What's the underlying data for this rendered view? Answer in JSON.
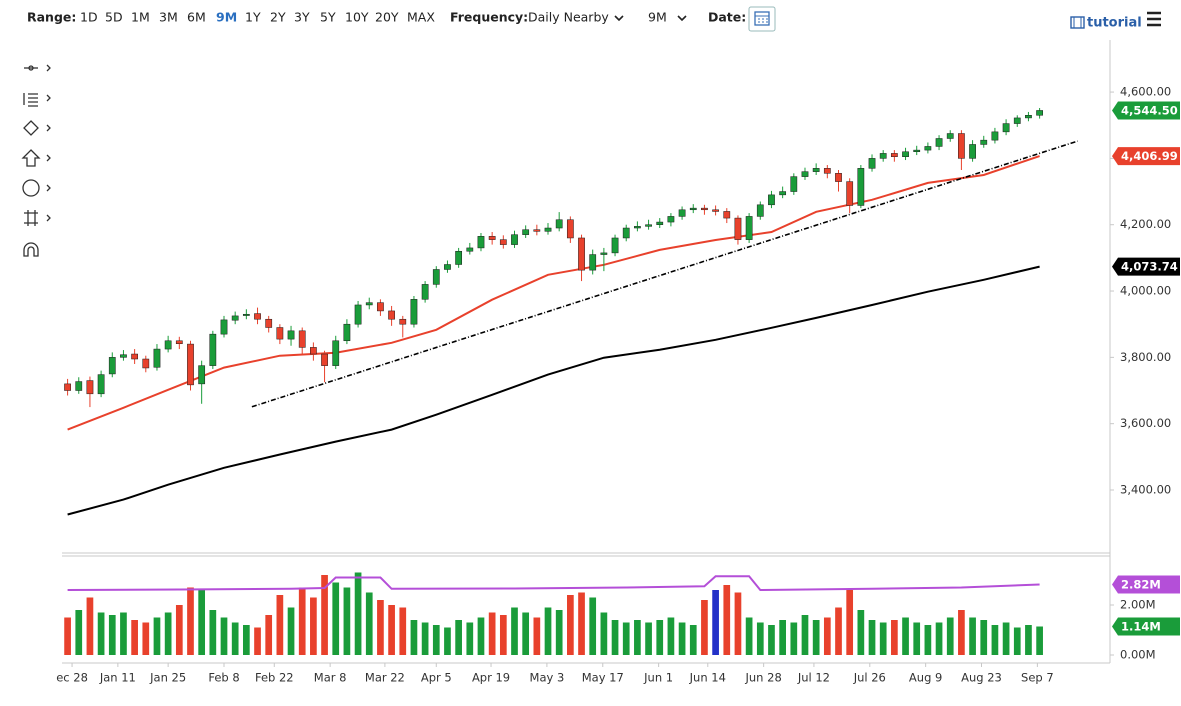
{
  "toolbar": {
    "range_label": "Range:",
    "ranges": [
      "1D",
      "5D",
      "1M",
      "3M",
      "6M",
      "9M",
      "1Y",
      "2Y",
      "3Y",
      "5Y",
      "10Y",
      "20Y",
      "MAX"
    ],
    "active_range": 5,
    "frequency_label": "Frequency:",
    "frequency": "Daily Nearby",
    "period": "9M",
    "date_label": "Date:",
    "tutorial": "tutorial"
  },
  "chart_data": [
    {
      "type": "candlestick",
      "x": [
        0,
        1,
        2,
        3,
        4,
        5,
        6,
        7,
        8,
        9,
        10,
        11,
        12,
        13,
        14,
        15,
        16,
        17,
        18,
        19,
        20,
        21,
        22,
        23,
        24,
        25,
        26,
        27,
        28,
        29,
        30,
        31,
        32,
        33,
        34,
        35,
        36,
        37,
        38,
        39,
        40,
        41,
        42,
        43,
        44,
        45,
        46,
        47,
        48,
        49,
        50,
        51,
        52,
        53,
        54,
        55,
        56,
        57,
        58,
        59,
        60,
        61,
        62,
        63,
        64,
        65,
        66,
        67,
        68,
        69,
        70,
        71,
        72,
        73,
        74,
        75,
        76,
        77,
        78,
        79,
        80,
        81,
        82,
        83,
        84,
        85,
        86,
        87
      ],
      "open": [
        3720,
        3700,
        3730,
        3690,
        3750,
        3800,
        3810,
        3795,
        3770,
        3825,
        3850,
        3840,
        3720,
        3775,
        3870,
        3912,
        3926,
        3932,
        3915,
        3890,
        3855,
        3880,
        3830,
        3810,
        3775,
        3850,
        3900,
        3958,
        3965,
        3940,
        3915,
        3900,
        3975,
        4020,
        4065,
        4080,
        4120,
        4130,
        4165,
        4155,
        4140,
        4170,
        4185,
        4180,
        4190,
        4215,
        4160,
        4063,
        4110,
        4115,
        4160,
        4190,
        4195,
        4200,
        4208,
        4225,
        4245,
        4250,
        4245,
        4240,
        4220,
        4155,
        4225,
        4260,
        4290,
        4300,
        4345,
        4360,
        4370,
        4355,
        4330,
        4258,
        4370,
        4400,
        4415,
        4405,
        4420,
        4425,
        4436,
        4460,
        4475,
        4400,
        4442,
        4455,
        4480,
        4505,
        4522,
        4530
      ],
      "high": [
        3735,
        3740,
        3742,
        3760,
        3815,
        3822,
        3825,
        3805,
        3840,
        3865,
        3862,
        3850,
        3790,
        3880,
        3925,
        3938,
        3945,
        3950,
        3925,
        3900,
        3895,
        3890,
        3845,
        3820,
        3865,
        3915,
        3970,
        3980,
        3975,
        3955,
        3925,
        3985,
        4030,
        4075,
        4092,
        4130,
        4145,
        4175,
        4178,
        4168,
        4182,
        4198,
        4200,
        4205,
        4238,
        4225,
        4170,
        4125,
        4130,
        4170,
        4200,
        4210,
        4215,
        4220,
        4235,
        4255,
        4262,
        4260,
        4258,
        4250,
        4228,
        4235,
        4270,
        4302,
        4315,
        4355,
        4372,
        4385,
        4380,
        4365,
        4340,
        4380,
        4412,
        4425,
        4425,
        4432,
        4438,
        4448,
        4470,
        4485,
        4485,
        4455,
        4468,
        4492,
        4518,
        4530,
        4540,
        4552
      ],
      "low": [
        3685,
        3690,
        3650,
        3680,
        3740,
        3790,
        3780,
        3755,
        3760,
        3815,
        3825,
        3700,
        3660,
        3765,
        3860,
        3900,
        3915,
        3900,
        3875,
        3840,
        3835,
        3810,
        3790,
        3725,
        3765,
        3840,
        3890,
        3945,
        3925,
        3895,
        3860,
        3890,
        3965,
        4010,
        4055,
        4070,
        4110,
        4120,
        4140,
        4128,
        4130,
        4160,
        4168,
        4170,
        4180,
        4145,
        4030,
        4050,
        4060,
        4105,
        4150,
        4180,
        4185,
        4190,
        4195,
        4215,
        4235,
        4230,
        4228,
        4205,
        4140,
        4145,
        4215,
        4250,
        4280,
        4290,
        4335,
        4350,
        4340,
        4300,
        4235,
        4250,
        4360,
        4390,
        4390,
        4395,
        4410,
        4415,
        4425,
        4450,
        4365,
        4390,
        4432,
        4445,
        4470,
        4495,
        4512,
        4520
      ],
      "close": [
        3700,
        3727,
        3690,
        3748,
        3800,
        3808,
        3795,
        3768,
        3825,
        3850,
        3841,
        3717,
        3775,
        3870,
        3913,
        3925,
        3930,
        3915,
        3890,
        3855,
        3880,
        3830,
        3810,
        3775,
        3850,
        3900,
        3958,
        3965,
        3940,
        3915,
        3900,
        3975,
        4020,
        4065,
        4080,
        4120,
        4130,
        4165,
        4155,
        4140,
        4170,
        4185,
        4180,
        4190,
        4215,
        4160,
        4063,
        4110,
        4115,
        4160,
        4190,
        4195,
        4200,
        4208,
        4225,
        4245,
        4250,
        4245,
        4240,
        4220,
        4155,
        4225,
        4260,
        4290,
        4300,
        4345,
        4360,
        4370,
        4355,
        4330,
        4258,
        4370,
        4400,
        4415,
        4405,
        4420,
        4425,
        4436,
        4460,
        4475,
        4400,
        4442,
        4455,
        4480,
        4505,
        4522,
        4530,
        4544.5
      ],
      "up_color": "#1a9c3a",
      "down_color": "#e8412c",
      "xlim": [
        -0.5,
        93.3
      ],
      "ylim": [
        3210,
        4757
      ],
      "yticks": [
        {
          "value": 3400,
          "label": "3,400.00"
        },
        {
          "value": 3600,
          "label": "3,600.00"
        },
        {
          "value": 3800,
          "label": "3,800.00"
        },
        {
          "value": 4000,
          "label": "4,000.00"
        },
        {
          "value": 4200,
          "label": "4,200.00"
        },
        {
          "value": 4400,
          "label": "4,400.00"
        },
        {
          "value": 4600,
          "label": "4,600.00"
        }
      ],
      "xticks": [
        {
          "value": 0.4,
          "label": "ec 28"
        },
        {
          "value": 4.5,
          "label": "Jan 11"
        },
        {
          "value": 9.0,
          "label": "Jan 25"
        },
        {
          "value": 14.0,
          "label": "Feb 8"
        },
        {
          "value": 18.5,
          "label": "Feb 22"
        },
        {
          "value": 23.5,
          "label": "Mar 8"
        },
        {
          "value": 28.4,
          "label": "Mar 22"
        },
        {
          "value": 33.0,
          "label": "Apr 5"
        },
        {
          "value": 37.9,
          "label": "Apr 19"
        },
        {
          "value": 42.9,
          "label": "May 3"
        },
        {
          "value": 47.9,
          "label": "May 17"
        },
        {
          "value": 52.9,
          "label": "Jun 1"
        },
        {
          "value": 57.3,
          "label": "Jun 14"
        },
        {
          "value": 62.3,
          "label": "Jun 28"
        },
        {
          "value": 66.8,
          "label": "Jul 12"
        },
        {
          "value": 71.8,
          "label": "Jul 26"
        },
        {
          "value": 76.8,
          "label": "Aug 9"
        },
        {
          "value": 81.8,
          "label": "Aug 23"
        },
        {
          "value": 86.8,
          "label": "Sep 7"
        }
      ],
      "lines": [
        {
          "color": "#e8412c",
          "x": [
            0,
            5,
            9,
            14,
            19,
            24,
            29,
            33,
            38,
            43,
            48,
            53,
            58,
            63,
            67,
            72,
            77,
            82,
            87
          ],
          "values": [
            3582,
            3648,
            3702,
            3769,
            3805,
            3814,
            3844,
            3883,
            3974,
            4049,
            4079,
            4124,
            4154,
            4178,
            4239,
            4275,
            4326,
            4350,
            4406.99
          ]
        },
        {
          "color": "#000000",
          "x": [
            0,
            5,
            9,
            14,
            19,
            24,
            29,
            33,
            38,
            43,
            48,
            53,
            58,
            63,
            67,
            72,
            77,
            82,
            87
          ],
          "values": [
            3326,
            3371,
            3416,
            3467,
            3507,
            3546,
            3582,
            3627,
            3687,
            3748,
            3799,
            3823,
            3853,
            3889,
            3919,
            3958,
            3998,
            4034,
            4073.74
          ]
        },
        {
          "color": "#000000",
          "dashed": true,
          "x": [
            16.5,
            90.4
          ],
          "values": [
            3651,
            4452
          ]
        }
      ],
      "tags": [
        {
          "value": 4544.5,
          "label": "4,544.50",
          "color": "#1a9c3a"
        },
        {
          "value": 4406.99,
          "label": "4,406.99",
          "color": "#e8412c"
        },
        {
          "value": 4073.74,
          "label": "4,073.74",
          "color": "#000000"
        }
      ]
    },
    {
      "type": "bar",
      "values": [
        1.5,
        1.8,
        2.3,
        1.7,
        1.6,
        1.7,
        1.4,
        1.3,
        1.5,
        1.7,
        2.0,
        2.7,
        2.6,
        1.8,
        1.5,
        1.3,
        1.2,
        1.1,
        1.6,
        2.4,
        1.9,
        2.7,
        2.3,
        3.2,
        2.9,
        2.7,
        3.3,
        2.5,
        2.2,
        2.0,
        1.9,
        1.4,
        1.3,
        1.2,
        1.1,
        1.4,
        1.3,
        1.5,
        1.7,
        1.6,
        1.9,
        1.7,
        1.5,
        1.9,
        1.8,
        2.4,
        2.5,
        2.3,
        1.7,
        1.4,
        1.3,
        1.4,
        1.3,
        1.4,
        1.5,
        1.3,
        1.2,
        2.2,
        2.6,
        2.8,
        2.5,
        1.5,
        1.3,
        1.2,
        1.4,
        1.3,
        1.6,
        1.4,
        1.5,
        1.9,
        2.6,
        1.8,
        1.4,
        1.3,
        1.4,
        1.5,
        1.3,
        1.2,
        1.3,
        1.5,
        1.8,
        1.5,
        1.4,
        1.2,
        1.3,
        1.1,
        1.2,
        1.14
      ],
      "highlight": 58,
      "highlight_color": "#2331c8",
      "ylim": [
        0,
        3.96
      ],
      "yticks": [
        {
          "value": 0,
          "label": "0.00M"
        },
        {
          "value": 2,
          "label": "2.00M"
        }
      ],
      "lines": [
        {
          "color": "#b44fd8",
          "x": [
            0,
            10,
            20,
            23,
            24,
            28,
            29,
            40,
            50,
            57,
            58,
            61,
            62,
            72,
            80,
            87
          ],
          "values": [
            2.6,
            2.62,
            2.65,
            2.68,
            3.1,
            3.1,
            2.65,
            2.66,
            2.7,
            2.75,
            3.15,
            3.15,
            2.6,
            2.65,
            2.7,
            2.82
          ]
        }
      ],
      "tags": [
        {
          "value": 2.82,
          "label": "2.82M",
          "color": "#b44fd8"
        },
        {
          "value": 1.14,
          "label": "1.14M",
          "color": "#1a9c3a"
        }
      ]
    }
  ]
}
